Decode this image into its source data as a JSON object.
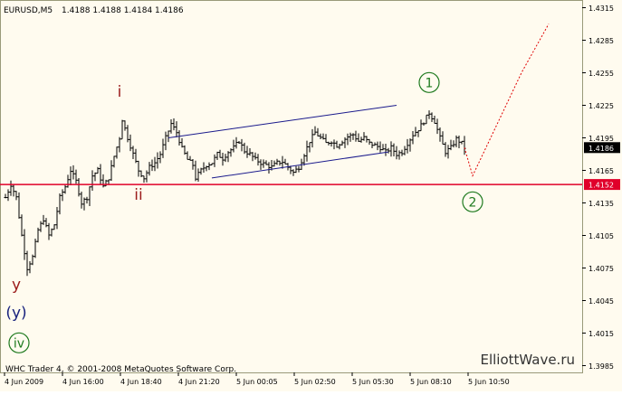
{
  "window": {
    "symbol_title": "EURUSD,M5",
    "ohlc": "1.4188 1.4188 1.4184 1.4186",
    "copyright": "WHC Trader 4, © 2001-2008 MetaQuotes Software Corp.",
    "watermark": "ElliottWave.ru"
  },
  "colors": {
    "background": "#FFFBEF",
    "frame": "#9A9A7A",
    "bars": "#000000",
    "channel": "#1A1A8C",
    "support": "#E0002A",
    "projection": "#E00000",
    "wave_red": "#9B1B1B",
    "wave_green": "#1E7A1E",
    "wave_blue": "#1A237E"
  },
  "chart_data": {
    "type": "ohlc",
    "title": "EURUSD,M5",
    "price_axis": {
      "ticks": [
        "1.4315",
        "1.4285",
        "1.4255",
        "1.4225",
        "1.4195",
        "1.4165",
        "1.4135",
        "1.4105",
        "1.4075",
        "1.4045",
        "1.4015",
        "1.3985"
      ],
      "ylim": [
        1.3985,
        1.4315
      ],
      "current_price": "1.4186",
      "level_label": "1.4152"
    },
    "time_axis": {
      "ticks": [
        "4 Jun 2009",
        "4 Jun 16:00",
        "4 Jun 18:40",
        "4 Jun 21:20",
        "5 Jun 00:05",
        "5 Jun 02:50",
        "5 Jun 05:30",
        "5 Jun 08:10",
        "5 Jun 10:50"
      ]
    },
    "price_path": [
      [
        0,
        1.414
      ],
      [
        2,
        1.4152
      ],
      [
        4,
        1.414
      ],
      [
        6,
        1.4105
      ],
      [
        8,
        1.4075
      ],
      [
        10,
        1.4085
      ],
      [
        12,
        1.411
      ],
      [
        14,
        1.412
      ],
      [
        16,
        1.4105
      ],
      [
        18,
        1.4115
      ],
      [
        20,
        1.414
      ],
      [
        22,
        1.415
      ],
      [
        24,
        1.4165
      ],
      [
        26,
        1.4155
      ],
      [
        28,
        1.4135
      ],
      [
        30,
        1.414
      ],
      [
        32,
        1.416
      ],
      [
        34,
        1.4165
      ],
      [
        36,
        1.415
      ],
      [
        38,
        1.4158
      ],
      [
        40,
        1.4178
      ],
      [
        42,
        1.4195
      ],
      [
        43,
        1.4212
      ],
      [
        45,
        1.4195
      ],
      [
        47,
        1.418
      ],
      [
        49,
        1.4165
      ],
      [
        51,
        1.4158
      ],
      [
        53,
        1.4168
      ],
      [
        55,
        1.4172
      ],
      [
        57,
        1.418
      ],
      [
        59,
        1.4195
      ],
      [
        61,
        1.4208
      ],
      [
        63,
        1.42
      ],
      [
        65,
        1.4185
      ],
      [
        67,
        1.4175
      ],
      [
        69,
        1.417
      ],
      [
        70,
        1.4158
      ],
      [
        72,
        1.4165
      ],
      [
        74,
        1.417
      ],
      [
        76,
        1.4172
      ],
      [
        78,
        1.418
      ],
      [
        80,
        1.4176
      ],
      [
        82,
        1.4182
      ],
      [
        84,
        1.4186
      ],
      [
        86,
        1.4192
      ],
      [
        88,
        1.4183
      ],
      [
        90,
        1.418
      ],
      [
        92,
        1.4175
      ],
      [
        94,
        1.4172
      ],
      [
        96,
        1.417
      ],
      [
        98,
        1.4168
      ],
      [
        100,
        1.4172
      ],
      [
        102,
        1.4173
      ],
      [
        104,
        1.4168
      ],
      [
        106,
        1.4163
      ],
      [
        108,
        1.4168
      ],
      [
        110,
        1.418
      ],
      [
        112,
        1.4192
      ],
      [
        114,
        1.42
      ],
      [
        116,
        1.4195
      ],
      [
        118,
        1.419
      ],
      [
        120,
        1.4192
      ],
      [
        122,
        1.4188
      ],
      [
        124,
        1.4192
      ],
      [
        126,
        1.4196
      ],
      [
        128,
        1.4198
      ],
      [
        130,
        1.4192
      ],
      [
        132,
        1.4195
      ],
      [
        134,
        1.419
      ],
      [
        136,
        1.4188
      ],
      [
        138,
        1.4186
      ],
      [
        140,
        1.4182
      ],
      [
        142,
        1.4186
      ],
      [
        144,
        1.418
      ],
      [
        146,
        1.4182
      ],
      [
        148,
        1.419
      ],
      [
        150,
        1.4198
      ],
      [
        152,
        1.4203
      ],
      [
        154,
        1.421
      ],
      [
        156,
        1.4218
      ],
      [
        158,
        1.421
      ],
      [
        160,
        1.4195
      ],
      [
        162,
        1.4182
      ],
      [
        164,
        1.4186
      ],
      [
        166,
        1.4194
      ],
      [
        168,
        1.419
      ],
      [
        169,
        1.4186
      ]
    ],
    "channel_upper": [
      [
        60,
        1.4195
      ],
      [
        144,
        1.4225
      ]
    ],
    "channel_lower": [
      [
        76,
        1.4158
      ],
      [
        141,
        1.4182
      ]
    ],
    "support_level": 1.4152,
    "projection": [
      [
        169,
        1.4186
      ],
      [
        172,
        1.416
      ],
      [
        190,
        1.4255
      ],
      [
        200,
        1.43
      ]
    ],
    "wave_labels": [
      {
        "text": "i",
        "bar": 42,
        "price": 1.4233,
        "style": "red"
      },
      {
        "text": "ii",
        "bar": 49,
        "price": 1.4138,
        "style": "red"
      },
      {
        "text": "y",
        "bar": 4,
        "price": 1.4055,
        "style": "red"
      },
      {
        "text": "(y)",
        "bar": 4,
        "price": 1.4029,
        "style": "blue"
      },
      {
        "text": "iv",
        "bar": 5,
        "price": 1.4006,
        "style": "green-circle"
      },
      {
        "text": "1",
        "bar": 156,
        "price": 1.4246,
        "style": "green-circle"
      },
      {
        "text": "2",
        "bar": 172,
        "price": 1.4136,
        "style": "green-circle"
      }
    ]
  }
}
